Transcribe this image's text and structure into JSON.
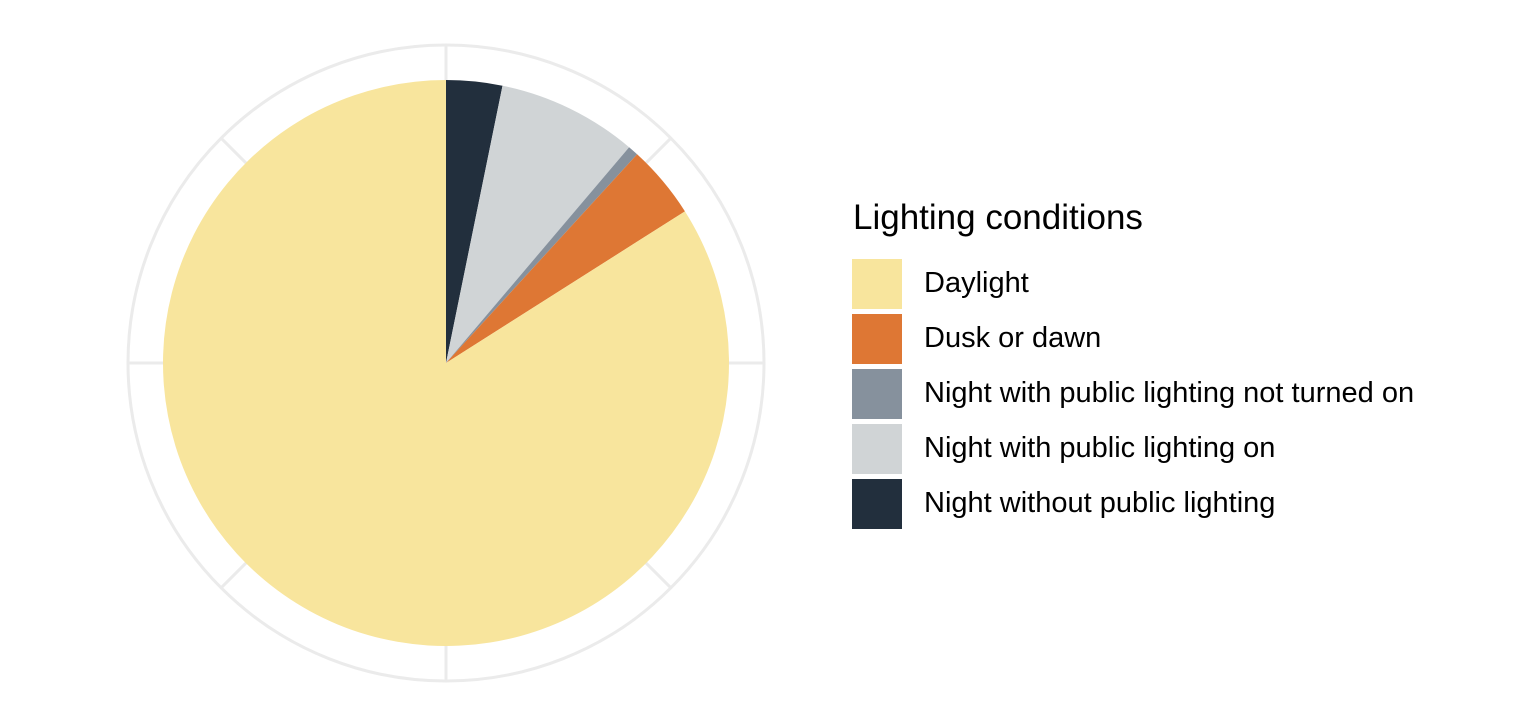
{
  "chart_data": {
    "type": "pie",
    "legend_title": "Lighting conditions",
    "legend_placement": "right",
    "grid": true,
    "categories": [
      "Daylight",
      "Dusk or dawn",
      "Night with public lighting not turned on",
      "Night with public lighting on",
      "Night without public lighting"
    ],
    "values": [
      84.0,
      4.2,
      0.6,
      8.0,
      3.2
    ],
    "colors": [
      "#F8E59D",
      "#DE7734",
      "#86919D",
      "#D0D4D6",
      "#222F3D"
    ],
    "slice_order_clockwise_from_top": [
      "Night without public lighting",
      "Night with public lighting on",
      "Night with public lighting not turned on",
      "Dusk or dawn",
      "Daylight"
    ]
  }
}
